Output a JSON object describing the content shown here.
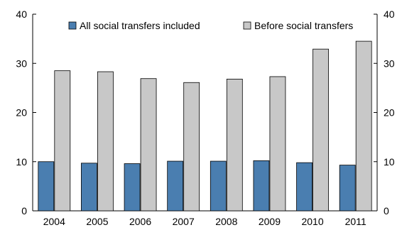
{
  "chart_data": {
    "type": "bar",
    "categories": [
      "2004",
      "2005",
      "2006",
      "2007",
      "2008",
      "2009",
      "2010",
      "2011"
    ],
    "series": [
      {
        "name": "All social transfers included",
        "color": "#4a7eb0",
        "values": [
          10.0,
          9.7,
          9.6,
          10.1,
          10.1,
          10.2,
          9.8,
          9.3
        ]
      },
      {
        "name": "Before social transfers",
        "color": "#c8c8c8",
        "values": [
          28.5,
          28.3,
          26.9,
          26.1,
          26.8,
          27.3,
          32.9,
          34.5
        ]
      }
    ],
    "ylim": [
      0,
      40
    ],
    "yticks": [
      0,
      10,
      20,
      30,
      40
    ],
    "right_axis_ticks": [
      0,
      10,
      20,
      30,
      40
    ],
    "legend": "top",
    "grid": false
  }
}
